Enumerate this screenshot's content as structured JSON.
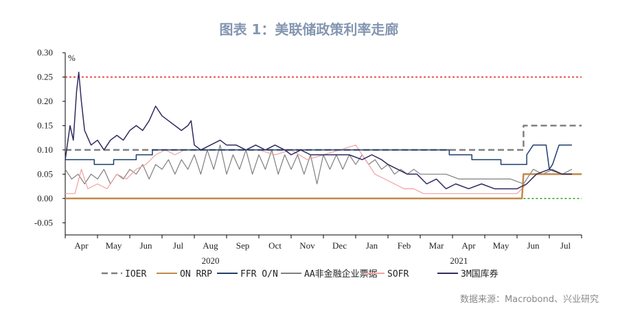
{
  "chart_data": {
    "type": "line",
    "title": "图表 1：美联储政策利率走廊",
    "ylabel": "%",
    "source": "数据来源：Macrobond、兴业研究",
    "ylim": [
      -0.075,
      0.3
    ],
    "yticks": [
      "0.30",
      "0.25",
      "0.20",
      "0.15",
      "0.10",
      "0.05",
      "0.00",
      "-0.05"
    ],
    "ytick_values": [
      0.3,
      0.25,
      0.2,
      0.15,
      0.1,
      0.05,
      0.0,
      -0.05
    ],
    "xlim": [
      0,
      16
    ],
    "months": [
      "Apr",
      "May",
      "Jun",
      "Jul",
      "Aug",
      "Sep",
      "Oct",
      "Nov",
      "Dec",
      "Jan",
      "Feb",
      "Mar",
      "Apr",
      "May",
      "Jun",
      "Jul"
    ],
    "years": [
      {
        "label": "2020",
        "at": 4.5
      },
      {
        "label": "2021",
        "at": 12.2
      }
    ],
    "reference_lines": [
      {
        "y": 0.25,
        "color": "#e0251c",
        "style": "dotted",
        "x_range": [
          0,
          16
        ]
      },
      {
        "y": 0.0,
        "color": "#2ca02c",
        "style": "dotted",
        "x_range": [
          14.2,
          16
        ]
      }
    ],
    "series": [
      {
        "name": "IOER",
        "color": "#7f7f7f",
        "style": "dashed",
        "width": 2.5,
        "points": [
          [
            0,
            0.1
          ],
          [
            14.2,
            0.1
          ],
          [
            14.2,
            0.15
          ],
          [
            16,
            0.15
          ]
        ]
      },
      {
        "name": "ON RRP",
        "color": "#c08a4a",
        "style": "solid",
        "width": 2.5,
        "points": [
          [
            0,
            0.0
          ],
          [
            14.15,
            0.0
          ],
          [
            14.2,
            0.05
          ],
          [
            16,
            0.05
          ]
        ]
      },
      {
        "name": "FFR O/N",
        "color": "#1f3e6b",
        "style": "solid",
        "width": 1.5,
        "points": [
          [
            0,
            0.08
          ],
          [
            0.9,
            0.08
          ],
          [
            0.9,
            0.07
          ],
          [
            1.5,
            0.07
          ],
          [
            1.5,
            0.08
          ],
          [
            2.2,
            0.08
          ],
          [
            2.2,
            0.09
          ],
          [
            2.7,
            0.09
          ],
          [
            2.7,
            0.1
          ],
          [
            11.9,
            0.1
          ],
          [
            11.9,
            0.09
          ],
          [
            12.6,
            0.09
          ],
          [
            12.6,
            0.08
          ],
          [
            13.5,
            0.08
          ],
          [
            13.5,
            0.07
          ],
          [
            14.3,
            0.07
          ],
          [
            14.3,
            0.09
          ],
          [
            14.5,
            0.11
          ],
          [
            14.9,
            0.11
          ],
          [
            15.0,
            0.06
          ],
          [
            15.1,
            0.07
          ],
          [
            15.3,
            0.11
          ],
          [
            15.7,
            0.11
          ]
        ]
      },
      {
        "name": "AA非金融企业票据",
        "color": "#7f7f7f",
        "style": "solid",
        "width": 1.2,
        "points": [
          [
            0,
            0.06
          ],
          [
            0.2,
            0.04
          ],
          [
            0.4,
            0.05
          ],
          [
            0.6,
            0.03
          ],
          [
            0.8,
            0.05
          ],
          [
            1.0,
            0.04
          ],
          [
            1.2,
            0.06
          ],
          [
            1.4,
            0.03
          ],
          [
            1.6,
            0.05
          ],
          [
            1.8,
            0.04
          ],
          [
            2.0,
            0.06
          ],
          [
            2.2,
            0.05
          ],
          [
            2.4,
            0.07
          ],
          [
            2.6,
            0.04
          ],
          [
            2.8,
            0.07
          ],
          [
            3.0,
            0.06
          ],
          [
            3.2,
            0.08
          ],
          [
            3.4,
            0.05
          ],
          [
            3.6,
            0.08
          ],
          [
            3.8,
            0.06
          ],
          [
            4.0,
            0.09
          ],
          [
            4.2,
            0.05
          ],
          [
            4.4,
            0.1
          ],
          [
            4.6,
            0.06
          ],
          [
            4.8,
            0.11
          ],
          [
            5.0,
            0.05
          ],
          [
            5.2,
            0.09
          ],
          [
            5.4,
            0.06
          ],
          [
            5.6,
            0.1
          ],
          [
            5.8,
            0.05
          ],
          [
            6.0,
            0.09
          ],
          [
            6.2,
            0.06
          ],
          [
            6.4,
            0.1
          ],
          [
            6.6,
            0.05
          ],
          [
            6.8,
            0.09
          ],
          [
            7.0,
            0.06
          ],
          [
            7.2,
            0.09
          ],
          [
            7.4,
            0.05
          ],
          [
            7.6,
            0.09
          ],
          [
            7.8,
            0.03
          ],
          [
            8.0,
            0.09
          ],
          [
            8.2,
            0.06
          ],
          [
            8.4,
            0.09
          ],
          [
            8.6,
            0.06
          ],
          [
            8.8,
            0.09
          ],
          [
            9.0,
            0.07
          ],
          [
            9.2,
            0.09
          ],
          [
            9.4,
            0.07
          ],
          [
            9.6,
            0.08
          ],
          [
            9.8,
            0.06
          ],
          [
            10.0,
            0.07
          ],
          [
            10.2,
            0.05
          ],
          [
            10.4,
            0.06
          ],
          [
            10.6,
            0.05
          ],
          [
            10.8,
            0.06
          ],
          [
            11.0,
            0.05
          ],
          [
            11.4,
            0.05
          ],
          [
            11.8,
            0.05
          ],
          [
            12.2,
            0.04
          ],
          [
            12.6,
            0.04
          ],
          [
            13.0,
            0.04
          ],
          [
            13.4,
            0.04
          ],
          [
            13.8,
            0.04
          ],
          [
            14.2,
            0.03
          ],
          [
            14.5,
            0.06
          ],
          [
            14.8,
            0.05
          ],
          [
            15.1,
            0.06
          ],
          [
            15.4,
            0.05
          ],
          [
            15.7,
            0.06
          ]
        ]
      },
      {
        "name": "SOFR",
        "color": "#f0a0a0",
        "style": "solid",
        "width": 1.2,
        "points": [
          [
            0,
            0.01
          ],
          [
            0.3,
            0.01
          ],
          [
            0.5,
            0.06
          ],
          [
            0.7,
            0.02
          ],
          [
            1.0,
            0.03
          ],
          [
            1.3,
            0.02
          ],
          [
            1.6,
            0.05
          ],
          [
            1.9,
            0.04
          ],
          [
            2.2,
            0.06
          ],
          [
            2.5,
            0.07
          ],
          [
            2.8,
            0.09
          ],
          [
            3.1,
            0.1
          ],
          [
            3.4,
            0.09
          ],
          [
            3.7,
            0.1
          ],
          [
            4.0,
            0.1
          ],
          [
            4.5,
            0.1
          ],
          [
            5.0,
            0.1
          ],
          [
            5.5,
            0.1
          ],
          [
            6.0,
            0.1
          ],
          [
            6.5,
            0.09
          ],
          [
            7.0,
            0.1
          ],
          [
            7.5,
            0.08
          ],
          [
            8.0,
            0.09
          ],
          [
            8.5,
            0.1
          ],
          [
            9.0,
            0.11
          ],
          [
            9.3,
            0.08
          ],
          [
            9.6,
            0.05
          ],
          [
            9.9,
            0.04
          ],
          [
            10.2,
            0.03
          ],
          [
            10.5,
            0.02
          ],
          [
            10.8,
            0.02
          ],
          [
            11.1,
            0.01
          ],
          [
            11.5,
            0.01
          ],
          [
            12.0,
            0.01
          ],
          [
            12.5,
            0.01
          ],
          [
            13.0,
            0.01
          ],
          [
            13.5,
            0.01
          ],
          [
            14.0,
            0.01
          ],
          [
            14.3,
            0.03
          ],
          [
            14.6,
            0.05
          ],
          [
            15.0,
            0.05
          ],
          [
            15.4,
            0.05
          ],
          [
            15.7,
            0.05
          ]
        ]
      },
      {
        "name": "3M国库券",
        "color": "#2e2a5e",
        "style": "solid",
        "width": 1.5,
        "points": [
          [
            0,
            0.08
          ],
          [
            0.15,
            0.15
          ],
          [
            0.25,
            0.12
          ],
          [
            0.35,
            0.22
          ],
          [
            0.42,
            0.26
          ],
          [
            0.5,
            0.2
          ],
          [
            0.6,
            0.14
          ],
          [
            0.8,
            0.11
          ],
          [
            1.0,
            0.12
          ],
          [
            1.2,
            0.1
          ],
          [
            1.4,
            0.12
          ],
          [
            1.6,
            0.13
          ],
          [
            1.8,
            0.12
          ],
          [
            2.0,
            0.14
          ],
          [
            2.2,
            0.15
          ],
          [
            2.4,
            0.14
          ],
          [
            2.6,
            0.16
          ],
          [
            2.8,
            0.19
          ],
          [
            3.0,
            0.17
          ],
          [
            3.2,
            0.16
          ],
          [
            3.4,
            0.15
          ],
          [
            3.6,
            0.14
          ],
          [
            3.8,
            0.15
          ],
          [
            3.9,
            0.16
          ],
          [
            4.0,
            0.11
          ],
          [
            4.2,
            0.1
          ],
          [
            4.5,
            0.11
          ],
          [
            4.8,
            0.12
          ],
          [
            5.0,
            0.11
          ],
          [
            5.3,
            0.11
          ],
          [
            5.6,
            0.1
          ],
          [
            5.9,
            0.11
          ],
          [
            6.2,
            0.1
          ],
          [
            6.5,
            0.11
          ],
          [
            6.8,
            0.1
          ],
          [
            7.0,
            0.09
          ],
          [
            7.3,
            0.1
          ],
          [
            7.6,
            0.09
          ],
          [
            8.0,
            0.09
          ],
          [
            8.4,
            0.09
          ],
          [
            8.8,
            0.09
          ],
          [
            9.2,
            0.08
          ],
          [
            9.5,
            0.09
          ],
          [
            9.8,
            0.08
          ],
          [
            10.0,
            0.07
          ],
          [
            10.3,
            0.06
          ],
          [
            10.6,
            0.05
          ],
          [
            10.9,
            0.05
          ],
          [
            11.2,
            0.03
          ],
          [
            11.5,
            0.04
          ],
          [
            11.8,
            0.02
          ],
          [
            12.1,
            0.03
          ],
          [
            12.5,
            0.02
          ],
          [
            12.9,
            0.03
          ],
          [
            13.3,
            0.02
          ],
          [
            13.7,
            0.02
          ],
          [
            14.0,
            0.02
          ],
          [
            14.3,
            0.03
          ],
          [
            14.6,
            0.05
          ],
          [
            15.0,
            0.06
          ],
          [
            15.4,
            0.05
          ],
          [
            15.7,
            0.05
          ]
        ]
      }
    ],
    "legend": [
      {
        "label": "IOER",
        "color": "#7f7f7f",
        "style": "dashed"
      },
      {
        "label": "ON RRP",
        "color": "#c08a4a",
        "style": "solid"
      },
      {
        "label": "FFR O/N",
        "color": "#1f3e6b",
        "style": "solid"
      },
      {
        "label": "AA非金融企业票据",
        "color": "#7f7f7f",
        "style": "solid"
      },
      {
        "label": "SOFR",
        "color": "#f0a0a0",
        "style": "solid"
      },
      {
        "label": "3M国库券",
        "color": "#2e2a5e",
        "style": "solid"
      }
    ]
  }
}
